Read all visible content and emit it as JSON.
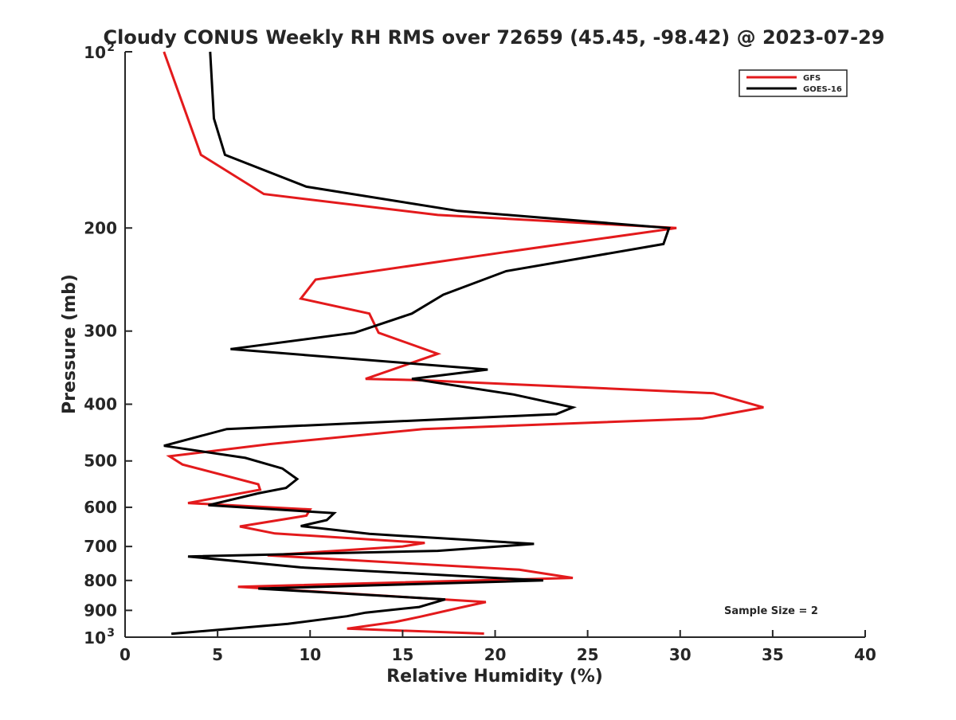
{
  "chart_data": {
    "type": "line",
    "title": "Cloudy CONUS Weekly RH RMS over 72659 (45.45, -98.42) @ 2023-07-29",
    "xlabel": "Relative Humidity (%)",
    "ylabel": "Pressure (mb)",
    "xlim": [
      0,
      40
    ],
    "ylim": [
      100,
      1000
    ],
    "y_scale": "log",
    "y_reversed": true,
    "grid": false,
    "legend_position": "top-right",
    "x_ticks": [
      0,
      5,
      10,
      15,
      20,
      25,
      30,
      35,
      40
    ],
    "x_tick_labels": [
      "0",
      "5",
      "10",
      "15",
      "20",
      "25",
      "30",
      "35",
      "40"
    ],
    "y_ticks": [
      100,
      200,
      300,
      400,
      500,
      600,
      700,
      800,
      900,
      1000
    ],
    "y_tick_labels": [
      {
        "base": "10",
        "exp": "2"
      },
      {
        "base": "200",
        "exp": ""
      },
      {
        "base": "300",
        "exp": ""
      },
      {
        "base": "400",
        "exp": ""
      },
      {
        "base": "500",
        "exp": ""
      },
      {
        "base": "600",
        "exp": ""
      },
      {
        "base": "700",
        "exp": ""
      },
      {
        "base": "800",
        "exp": ""
      },
      {
        "base": "900",
        "exp": ""
      },
      {
        "base": "10",
        "exp": "3"
      }
    ],
    "annotation": "Sample Size = 2",
    "series": [
      {
        "name": "GFS",
        "color": "#e31a1c",
        "points": [
          [
            2.1,
            100
          ],
          [
            4.1,
            150
          ],
          [
            7.5,
            175
          ],
          [
            16.9,
            190
          ],
          [
            29.8,
            200
          ],
          [
            20.5,
            220
          ],
          [
            10.3,
            245
          ],
          [
            9.5,
            264
          ],
          [
            13.2,
            280
          ],
          [
            13.7,
            302
          ],
          [
            16.9,
            328
          ],
          [
            13.0,
            362
          ],
          [
            16.0,
            364
          ],
          [
            31.8,
            383
          ],
          [
            34.5,
            405
          ],
          [
            31.2,
            423
          ],
          [
            16.1,
            441
          ],
          [
            7.8,
            468
          ],
          [
            2.4,
            491
          ],
          [
            3.1,
            507
          ],
          [
            7.2,
            548
          ],
          [
            7.3,
            560
          ],
          [
            3.4,
            590
          ],
          [
            10.0,
            605
          ],
          [
            9.8,
            620
          ],
          [
            6.2,
            647
          ],
          [
            8.1,
            665
          ],
          [
            16.2,
            690
          ],
          [
            15.0,
            700
          ],
          [
            7.7,
            725
          ],
          [
            21.3,
            767
          ],
          [
            24.2,
            792
          ],
          [
            6.1,
            820
          ],
          [
            19.5,
            871
          ],
          [
            18.0,
            892
          ],
          [
            16.0,
            922
          ],
          [
            14.6,
            942
          ],
          [
            12.0,
            967
          ],
          [
            19.4,
            986
          ]
        ]
      },
      {
        "name": "GOES-16",
        "color": "#000000",
        "points": [
          [
            4.6,
            100
          ],
          [
            4.8,
            130
          ],
          [
            5.4,
            150
          ],
          [
            9.8,
            170
          ],
          [
            18.0,
            187
          ],
          [
            29.4,
            200
          ],
          [
            29.1,
            213
          ],
          [
            20.6,
            237
          ],
          [
            17.2,
            260
          ],
          [
            15.5,
            280
          ],
          [
            12.4,
            302
          ],
          [
            5.7,
            322
          ],
          [
            19.6,
            349
          ],
          [
            15.5,
            362
          ],
          [
            21.0,
            385
          ],
          [
            24.2,
            405
          ],
          [
            23.3,
            416
          ],
          [
            5.5,
            441
          ],
          [
            2.1,
            471
          ],
          [
            6.5,
            494
          ],
          [
            8.5,
            515
          ],
          [
            9.3,
            537
          ],
          [
            8.7,
            556
          ],
          [
            7.2,
            568
          ],
          [
            4.5,
            595
          ],
          [
            11.3,
            614
          ],
          [
            10.9,
            631
          ],
          [
            9.5,
            646
          ],
          [
            13.2,
            666
          ],
          [
            22.1,
            693
          ],
          [
            16.9,
            712
          ],
          [
            3.4,
            728
          ],
          [
            9.5,
            760
          ],
          [
            22.6,
            800
          ],
          [
            7.2,
            826
          ],
          [
            17.3,
            862
          ],
          [
            15.9,
            888
          ],
          [
            13.0,
            908
          ],
          [
            12.0,
            921
          ],
          [
            8.8,
            949
          ],
          [
            2.5,
            987
          ]
        ]
      }
    ]
  }
}
